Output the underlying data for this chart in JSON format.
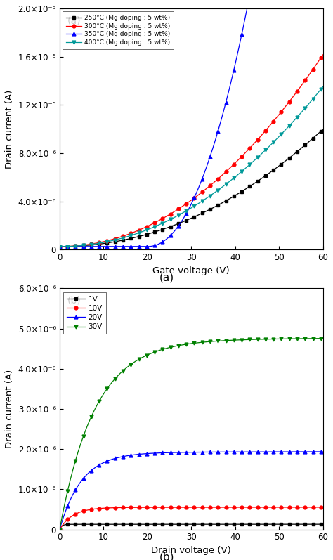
{
  "panel_a": {
    "label": "(a)",
    "xlabel": "Gate voltage (V)",
    "ylabel": "Drain current (A)",
    "xlim": [
      0,
      60
    ],
    "ylim": [
      0,
      2e-05
    ],
    "yticks": [
      0,
      4e-06,
      8e-06,
      1.2e-05,
      1.6e-05,
      2e-05
    ],
    "series": [
      {
        "label": "250°C (Mg doping : 5 wt%)",
        "color": "#000000",
        "marker": "s",
        "Vth": 0.0,
        "k": 2.2e-09,
        "n": 2.05
      },
      {
        "label": "300°C (Mg doping : 5 wt%)",
        "color": "#ff0000",
        "marker": "o",
        "Vth": 0.0,
        "k": 3.6e-09,
        "n": 2.05
      },
      {
        "label": "350°C (Mg doping : 5 wt%)",
        "color": "#0000ff",
        "marker": "^",
        "Vth": 20.0,
        "k": 2.8e-08,
        "n": 2.1
      },
      {
        "label": "400°C (Mg doping : 5 wt%)",
        "color": "#009999",
        "marker": "v",
        "Vth": 0.0,
        "k": 3e-09,
        "n": 2.05
      }
    ]
  },
  "panel_b": {
    "label": "(b)",
    "xlabel": "Drain voltage (V)",
    "ylabel": "Drain current (A)",
    "xlim": [
      0,
      60
    ],
    "ylim": [
      0,
      6e-06
    ],
    "yticks": [
      0,
      1e-06,
      2e-06,
      3e-06,
      4e-06,
      5e-06,
      6e-06
    ],
    "series": [
      {
        "label": "1V",
        "color": "#000000",
        "marker": "s",
        "Isat": 1.3e-07,
        "tau": 0.5
      },
      {
        "label": "10V",
        "color": "#ff0000",
        "marker": "o",
        "Isat": 5.5e-07,
        "tau": 3.0
      },
      {
        "label": "20V",
        "color": "#0000ff",
        "marker": "^",
        "Isat": 1.92e-06,
        "tau": 5.0
      },
      {
        "label": "30V",
        "color": "#008000",
        "marker": "v",
        "Isat": 4.72e-06,
        "tau": 8.0
      }
    ]
  },
  "caption_a": "(a)",
  "caption_b": "(b)",
  "fig_width": 4.74,
  "fig_height": 7.97,
  "dpi": 100
}
